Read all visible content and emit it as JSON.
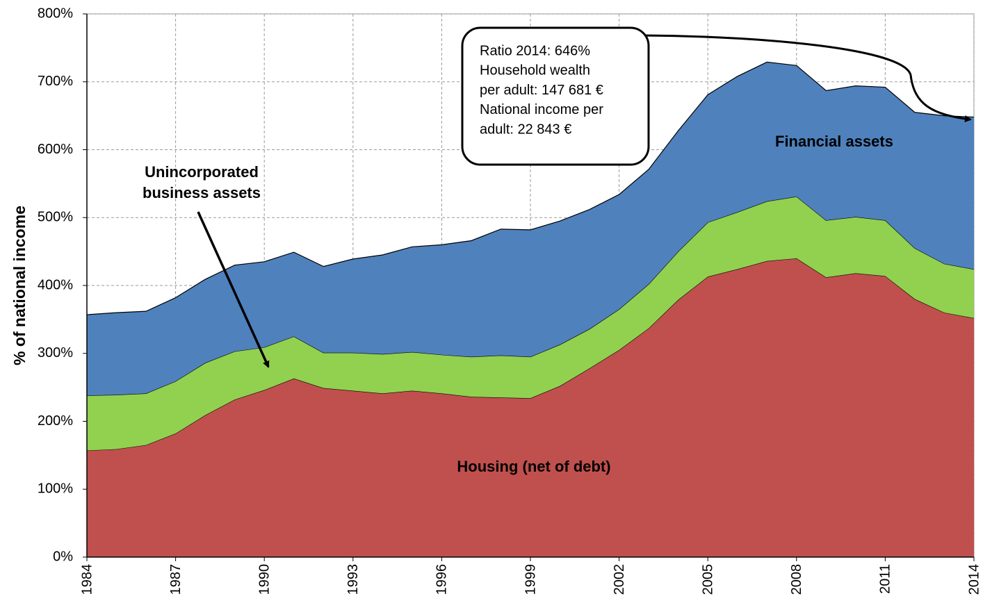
{
  "chart_data": {
    "type": "stacked-area",
    "y_label": "% of national income",
    "x": [
      1984,
      1985,
      1986,
      1987,
      1988,
      1989,
      1990,
      1991,
      1992,
      1993,
      1994,
      1995,
      1996,
      1997,
      1998,
      1999,
      2000,
      2001,
      2002,
      2003,
      2004,
      2005,
      2006,
      2007,
      2008,
      2009,
      2010,
      2011,
      2012,
      2013,
      2014
    ],
    "series": [
      {
        "name": "Housing (net of debt)",
        "color": "#c0504d",
        "values": [
          157,
          159,
          165,
          182,
          209,
          232,
          246,
          263,
          249,
          245,
          241,
          245,
          241,
          236,
          235,
          234,
          252,
          278,
          305,
          337,
          379,
          413,
          424,
          436,
          440,
          412,
          418,
          414,
          380,
          360,
          352
        ]
      },
      {
        "name": "Unincorporated business assets",
        "color": "#92d050",
        "values": [
          81,
          80,
          76,
          77,
          77,
          71,
          63,
          62,
          52,
          56,
          58,
          57,
          57,
          59,
          62,
          61,
          61,
          58,
          60,
          65,
          71,
          80,
          84,
          88,
          91,
          84,
          83,
          82,
          75,
          72,
          72
        ]
      },
      {
        "name": "Financial assets",
        "color": "#4f81bd",
        "values": [
          119,
          121,
          121,
          123,
          123,
          127,
          126,
          124,
          127,
          138,
          146,
          155,
          162,
          171,
          186,
          187,
          182,
          176,
          169,
          169,
          178,
          188,
          200,
          205,
          193,
          191,
          193,
          196,
          200,
          218,
          224
        ]
      }
    ],
    "xlim": [
      1984,
      2014
    ],
    "xticks": [
      1984,
      1987,
      1990,
      1993,
      1996,
      1999,
      2002,
      2005,
      2008,
      2011,
      2014
    ],
    "ylim": [
      0,
      800
    ],
    "yticks": [
      {
        "value": 0,
        "label": "0%"
      },
      {
        "value": 100,
        "label": "100%"
      },
      {
        "value": 200,
        "label": "200%"
      },
      {
        "value": 300,
        "label": "300%"
      },
      {
        "value": 400,
        "label": "400%"
      },
      {
        "value": 500,
        "label": "500%"
      },
      {
        "value": 600,
        "label": "600%"
      },
      {
        "value": 700,
        "label": "700%"
      },
      {
        "value": 800,
        "label": "800%"
      }
    ],
    "grid": true,
    "annotation": [
      "Ratio 2014: 646%",
      "Household wealth",
      "per adult: 147 681 €",
      "National income per",
      "adult: 22 843 €"
    ]
  }
}
